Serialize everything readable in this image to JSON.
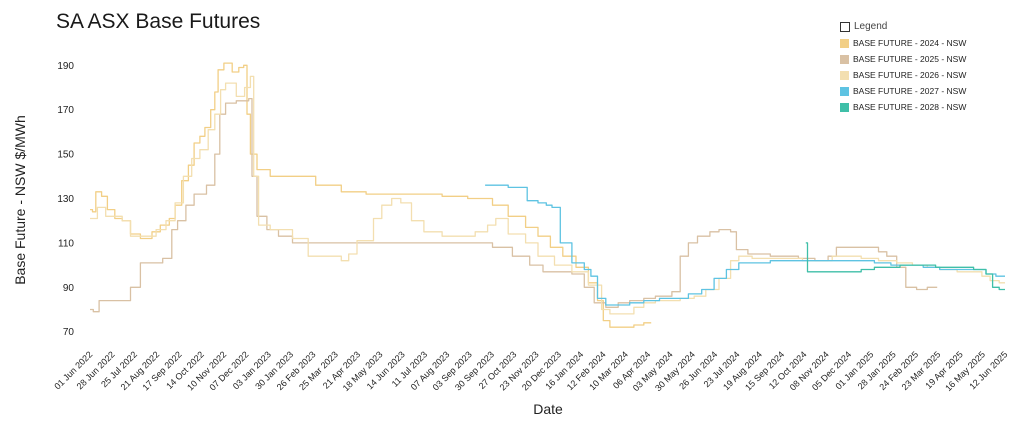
{
  "chart_data": {
    "type": "line",
    "title": "SA ASX Base Futures",
    "xlabel": "Date",
    "ylabel": "Base Future - NSW $/MWh",
    "ylim": [
      64,
      196
    ],
    "yticks": [
      70,
      90,
      110,
      130,
      150,
      170,
      190
    ],
    "x_start": "2022-06-01",
    "x_end": "2025-06-12",
    "x_tick_labels": [
      "01 Jun 2022",
      "28 Jun 2022",
      "25 Jul 2022",
      "21 Aug 2022",
      "17 Sep 2022",
      "14 Oct 2022",
      "10 Nov 2022",
      "07 Dec 2022",
      "03 Jan 2023",
      "30 Jan 2023",
      "26 Feb 2023",
      "25 Mar 2023",
      "21 Apr 2023",
      "18 May 2023",
      "14 Jun 2023",
      "11 Jul 2023",
      "07 Aug 2023",
      "03 Sep 2023",
      "30 Sep 2023",
      "27 Oct 2023",
      "23 Nov 2023",
      "20 Dec 2023",
      "16 Jan 2024",
      "12 Feb 2024",
      "10 Mar 2024",
      "06 Apr 2024",
      "03 May 2024",
      "30 May 2024",
      "26 Jun 2024",
      "23 Jul 2024",
      "19 Aug 2024",
      "15 Sep 2024",
      "12 Oct 2024",
      "08 Nov 2024",
      "05 Dec 2024",
      "01 Jan 2025",
      "28 Jan 2025",
      "24 Feb 2025",
      "23 Mar 2025",
      "19 Apr 2025",
      "16 May 2025",
      "12 Jun 2025"
    ],
    "legend_title": "Legend",
    "legend_position": "top-right",
    "grid": false,
    "series": [
      {
        "name": "BASE FUTURE - 2024 - NSW",
        "color": "#f2cf86",
        "points": [
          [
            "2022-06-01",
            125
          ],
          [
            "2022-06-04",
            124
          ],
          [
            "2022-06-08",
            133
          ],
          [
            "2022-06-15",
            131
          ],
          [
            "2022-06-22",
            125
          ],
          [
            "2022-07-01",
            121
          ],
          [
            "2022-07-10",
            120
          ],
          [
            "2022-07-20",
            114
          ],
          [
            "2022-08-01",
            112
          ],
          [
            "2022-08-15",
            115
          ],
          [
            "2022-08-25",
            118
          ],
          [
            "2022-09-05",
            121
          ],
          [
            "2022-09-12",
            127
          ],
          [
            "2022-09-20",
            138
          ],
          [
            "2022-09-28",
            145
          ],
          [
            "2022-10-05",
            155
          ],
          [
            "2022-10-12",
            158
          ],
          [
            "2022-10-18",
            162
          ],
          [
            "2022-10-25",
            170
          ],
          [
            "2022-10-30",
            178
          ],
          [
            "2022-11-03",
            188
          ],
          [
            "2022-11-10",
            191
          ],
          [
            "2022-11-20",
            187
          ],
          [
            "2022-11-28",
            189
          ],
          [
            "2022-12-04",
            190
          ],
          [
            "2022-12-08",
            168
          ],
          [
            "2022-12-12",
            150
          ],
          [
            "2022-12-20",
            143
          ],
          [
            "2023-01-05",
            140
          ],
          [
            "2023-02-01",
            140
          ],
          [
            "2023-03-01",
            136
          ],
          [
            "2023-04-01",
            133
          ],
          [
            "2023-05-01",
            132
          ],
          [
            "2023-06-15",
            132
          ],
          [
            "2023-08-01",
            131
          ],
          [
            "2023-09-01",
            130
          ],
          [
            "2023-10-01",
            127
          ],
          [
            "2023-10-20",
            122
          ],
          [
            "2023-11-10",
            117
          ],
          [
            "2023-11-25",
            113
          ],
          [
            "2023-12-10",
            108
          ],
          [
            "2023-12-25",
            104
          ],
          [
            "2024-01-10",
            99
          ],
          [
            "2024-01-25",
            92
          ],
          [
            "2024-02-05",
            84
          ],
          [
            "2024-02-12",
            75
          ],
          [
            "2024-02-20",
            72
          ],
          [
            "2024-03-05",
            72
          ],
          [
            "2024-03-20",
            73
          ],
          [
            "2024-04-01",
            74
          ],
          [
            "2024-04-10",
            74
          ]
        ]
      },
      {
        "name": "BASE FUTURE - 2025 - NSW",
        "color": "#d9c1a4",
        "points": [
          [
            "2022-06-01",
            80
          ],
          [
            "2022-06-05",
            79
          ],
          [
            "2022-06-12",
            84
          ],
          [
            "2022-06-25",
            84
          ],
          [
            "2022-07-10",
            84
          ],
          [
            "2022-07-20",
            90
          ],
          [
            "2022-08-01",
            101
          ],
          [
            "2022-08-15",
            101
          ],
          [
            "2022-08-28",
            103
          ],
          [
            "2022-09-08",
            116
          ],
          [
            "2022-09-15",
            120
          ],
          [
            "2022-09-25",
            127
          ],
          [
            "2022-10-05",
            132
          ],
          [
            "2022-10-20",
            136
          ],
          [
            "2022-10-30",
            150
          ],
          [
            "2022-11-05",
            168
          ],
          [
            "2022-11-12",
            173
          ],
          [
            "2022-11-25",
            174
          ],
          [
            "2022-12-05",
            174
          ],
          [
            "2022-12-10",
            175
          ],
          [
            "2022-12-14",
            140
          ],
          [
            "2022-12-20",
            122
          ],
          [
            "2023-01-01",
            116
          ],
          [
            "2023-01-15",
            113
          ],
          [
            "2023-02-01",
            110
          ],
          [
            "2023-03-01",
            110
          ],
          [
            "2023-04-01",
            110
          ],
          [
            "2023-05-01",
            110
          ],
          [
            "2023-06-01",
            110
          ],
          [
            "2023-07-01",
            110
          ],
          [
            "2023-08-01",
            110
          ],
          [
            "2023-09-01",
            110
          ],
          [
            "2023-10-01",
            108
          ],
          [
            "2023-10-25",
            104
          ],
          [
            "2023-11-15",
            100
          ],
          [
            "2023-12-01",
            97
          ],
          [
            "2023-12-20",
            97
          ],
          [
            "2024-01-05",
            96
          ],
          [
            "2024-01-20",
            90
          ],
          [
            "2024-02-01",
            83
          ],
          [
            "2024-02-15",
            81
          ],
          [
            "2024-03-01",
            83
          ],
          [
            "2024-03-15",
            84
          ],
          [
            "2024-04-01",
            85
          ],
          [
            "2024-04-15",
            86
          ],
          [
            "2024-05-05",
            88
          ],
          [
            "2024-05-15",
            104
          ],
          [
            "2024-05-25",
            110
          ],
          [
            "2024-06-05",
            113
          ],
          [
            "2024-06-20",
            115
          ],
          [
            "2024-07-01",
            116
          ],
          [
            "2024-07-15",
            115
          ],
          [
            "2024-07-22",
            107
          ],
          [
            "2024-08-05",
            105
          ],
          [
            "2024-08-20",
            105
          ],
          [
            "2024-09-01",
            104
          ],
          [
            "2024-09-20",
            104
          ],
          [
            "2024-10-05",
            103
          ],
          [
            "2024-10-25",
            102
          ],
          [
            "2024-11-10",
            104
          ],
          [
            "2024-11-20",
            108
          ],
          [
            "2024-12-10",
            108
          ],
          [
            "2024-12-25",
            108
          ],
          [
            "2025-01-10",
            106
          ],
          [
            "2025-01-20",
            104
          ],
          [
            "2025-02-01",
            99
          ],
          [
            "2025-02-12",
            90
          ],
          [
            "2025-02-25",
            89
          ],
          [
            "2025-03-10",
            90
          ],
          [
            "2025-03-22",
            90
          ]
        ]
      },
      {
        "name": "BASE FUTURE - 2026 - NSW",
        "color": "#f3dfb0",
        "points": [
          [
            "2022-06-01",
            121
          ],
          [
            "2022-06-10",
            126
          ],
          [
            "2022-06-20",
            122
          ],
          [
            "2022-07-10",
            120
          ],
          [
            "2022-07-20",
            113
          ],
          [
            "2022-08-10",
            113
          ],
          [
            "2022-08-20",
            116
          ],
          [
            "2022-09-01",
            120
          ],
          [
            "2022-09-12",
            128
          ],
          [
            "2022-09-22",
            140
          ],
          [
            "2022-10-02",
            148
          ],
          [
            "2022-10-12",
            152
          ],
          [
            "2022-10-22",
            161
          ],
          [
            "2022-10-30",
            168
          ],
          [
            "2022-11-06",
            179
          ],
          [
            "2022-11-12",
            182
          ],
          [
            "2022-11-25",
            176
          ],
          [
            "2022-12-05",
            180
          ],
          [
            "2022-12-12",
            185
          ],
          [
            "2022-12-16",
            140
          ],
          [
            "2022-12-22",
            118
          ],
          [
            "2023-01-05",
            116
          ],
          [
            "2023-02-01",
            112
          ],
          [
            "2023-02-20",
            104
          ],
          [
            "2023-03-10",
            104
          ],
          [
            "2023-04-01",
            102
          ],
          [
            "2023-04-10",
            105
          ],
          [
            "2023-04-20",
            111
          ],
          [
            "2023-05-10",
            121
          ],
          [
            "2023-05-20",
            127
          ],
          [
            "2023-06-01",
            130
          ],
          [
            "2023-06-12",
            128
          ],
          [
            "2023-06-25",
            120
          ],
          [
            "2023-07-10",
            115
          ],
          [
            "2023-08-01",
            113
          ],
          [
            "2023-08-20",
            113
          ],
          [
            "2023-09-10",
            115
          ],
          [
            "2023-09-25",
            118
          ],
          [
            "2023-10-05",
            121
          ],
          [
            "2023-10-20",
            114
          ],
          [
            "2023-11-10",
            110
          ],
          [
            "2023-11-25",
            104
          ],
          [
            "2023-12-15",
            100
          ],
          [
            "2024-01-05",
            97
          ],
          [
            "2024-01-25",
            91
          ],
          [
            "2024-02-10",
            80
          ],
          [
            "2024-02-20",
            78
          ],
          [
            "2024-03-05",
            78
          ],
          [
            "2024-03-20",
            81
          ],
          [
            "2024-04-01",
            83
          ],
          [
            "2024-04-15",
            84
          ],
          [
            "2024-05-01",
            84
          ],
          [
            "2024-05-15",
            85
          ],
          [
            "2024-06-01",
            86
          ],
          [
            "2024-06-15",
            89
          ],
          [
            "2024-07-01",
            94
          ],
          [
            "2024-07-15",
            102
          ],
          [
            "2024-07-25",
            104
          ],
          [
            "2024-08-10",
            103
          ],
          [
            "2024-09-01",
            103
          ],
          [
            "2024-09-20",
            103
          ],
          [
            "2024-10-10",
            102
          ],
          [
            "2024-11-01",
            102
          ],
          [
            "2024-11-15",
            104
          ],
          [
            "2024-12-01",
            104
          ],
          [
            "2024-12-20",
            103
          ],
          [
            "2025-01-10",
            102
          ],
          [
            "2025-02-01",
            101
          ],
          [
            "2025-02-20",
            100
          ],
          [
            "2025-03-10",
            99
          ],
          [
            "2025-03-25",
            98
          ],
          [
            "2025-04-15",
            97
          ],
          [
            "2025-05-01",
            97
          ],
          [
            "2025-05-15",
            95
          ],
          [
            "2025-05-25",
            93
          ],
          [
            "2025-06-05",
            92
          ],
          [
            "2025-06-12",
            92
          ]
        ]
      },
      {
        "name": "BASE FUTURE - 2027 - NSW",
        "color": "#5ec3e2",
        "points": [
          [
            "2023-09-22",
            136
          ],
          [
            "2023-10-01",
            136
          ],
          [
            "2023-10-20",
            135
          ],
          [
            "2023-11-05",
            135
          ],
          [
            "2023-11-12",
            129
          ],
          [
            "2023-11-25",
            128
          ],
          [
            "2023-12-05",
            127
          ],
          [
            "2023-12-12",
            126
          ],
          [
            "2023-12-22",
            110
          ],
          [
            "2024-01-05",
            101
          ],
          [
            "2024-01-15",
            101
          ],
          [
            "2024-01-20",
            98
          ],
          [
            "2024-01-28",
            95
          ],
          [
            "2024-02-05",
            85
          ],
          [
            "2024-02-15",
            82
          ],
          [
            "2024-03-01",
            82
          ],
          [
            "2024-03-15",
            83
          ],
          [
            "2024-04-01",
            84
          ],
          [
            "2024-04-20",
            85
          ],
          [
            "2024-05-10",
            85
          ],
          [
            "2024-05-25",
            87
          ],
          [
            "2024-06-10",
            89
          ],
          [
            "2024-06-25",
            94
          ],
          [
            "2024-07-10",
            98
          ],
          [
            "2024-07-25",
            101
          ],
          [
            "2024-08-10",
            101
          ],
          [
            "2024-09-01",
            102
          ],
          [
            "2024-09-20",
            102
          ],
          [
            "2024-10-15",
            102
          ],
          [
            "2024-11-05",
            102
          ],
          [
            "2024-11-25",
            102
          ],
          [
            "2024-12-15",
            102
          ],
          [
            "2025-01-05",
            101
          ],
          [
            "2025-01-25",
            100
          ],
          [
            "2025-02-15",
            100
          ],
          [
            "2025-03-05",
            99
          ],
          [
            "2025-03-25",
            98
          ],
          [
            "2025-04-15",
            98
          ],
          [
            "2025-05-05",
            98
          ],
          [
            "2025-05-20",
            96
          ],
          [
            "2025-06-01",
            95
          ],
          [
            "2025-06-12",
            95
          ]
        ]
      },
      {
        "name": "BASE FUTURE - 2028 - NSW",
        "color": "#3fbfa8",
        "points": [
          [
            "2024-10-14",
            110
          ],
          [
            "2024-10-16",
            97
          ],
          [
            "2024-11-01",
            97
          ],
          [
            "2024-11-20",
            97
          ],
          [
            "2024-12-05",
            97
          ],
          [
            "2024-12-20",
            98
          ],
          [
            "2025-01-05",
            99
          ],
          [
            "2025-01-20",
            99
          ],
          [
            "2025-02-05",
            100
          ],
          [
            "2025-02-20",
            100
          ],
          [
            "2025-03-05",
            100
          ],
          [
            "2025-03-20",
            99
          ],
          [
            "2025-04-05",
            99
          ],
          [
            "2025-04-20",
            99
          ],
          [
            "2025-05-05",
            98
          ],
          [
            "2025-05-20",
            96
          ],
          [
            "2025-05-28",
            90
          ],
          [
            "2025-06-05",
            89
          ],
          [
            "2025-06-12",
            89
          ]
        ]
      }
    ]
  }
}
